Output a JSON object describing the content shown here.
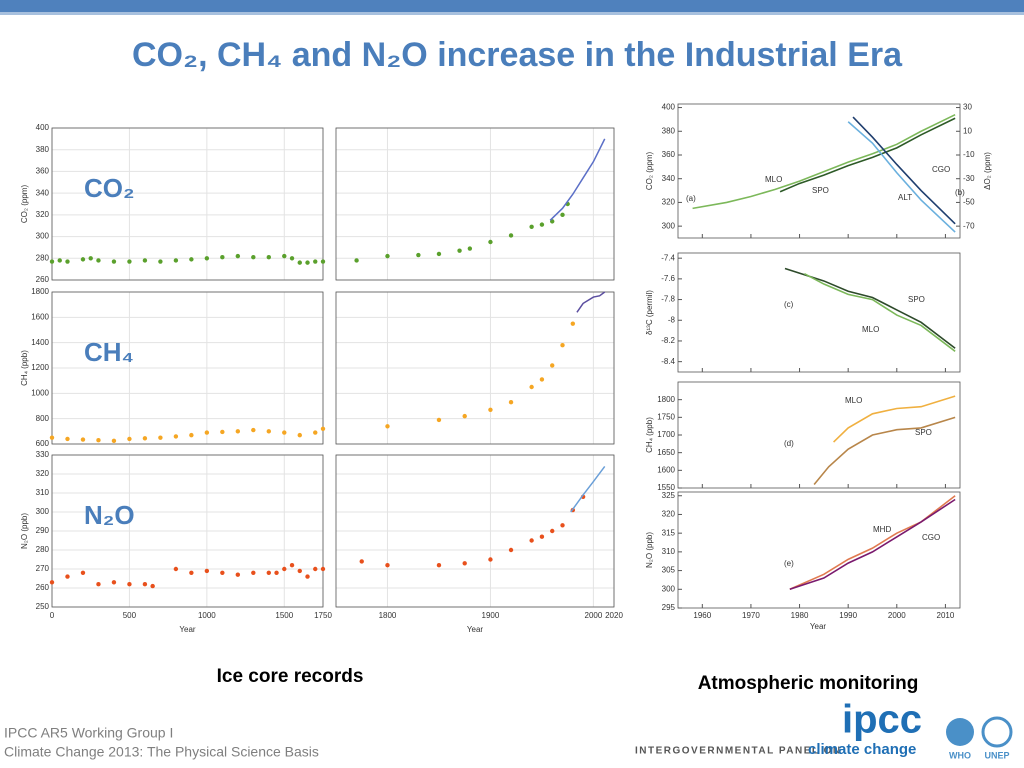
{
  "title": "CO₂, CH₄ and N₂O increase in the Industrial Era",
  "captions": [
    "Ice core records",
    "Atmospheric monitoring"
  ],
  "footer": [
    "IPCC AR5 Working Group I",
    "Climate Change 2013:  The Physical Science Basis"
  ],
  "logo": {
    "name": "ipcc",
    "tagline": "INTERGOVERNMENTAL PANEL ON",
    "tagline2": "climate change",
    "partners": [
      "WHO",
      "UNEP"
    ]
  },
  "chart_data": [
    {
      "type": "scatter",
      "label": "CO₂",
      "ylabel": "CO₂ (ppm)",
      "color": "#5aa02c",
      "ylim": [
        260,
        400
      ],
      "yticks": [
        260,
        280,
        300,
        320,
        340,
        360,
        380,
        400
      ],
      "xlim": [
        0,
        1750
      ],
      "xticks": [
        0,
        500,
        1000,
        1500,
        1750
      ],
      "x2lim": [
        1750,
        2020
      ],
      "x2ticks": [
        1800,
        1900,
        2000,
        2020
      ],
      "x": [
        0,
        50,
        100,
        200,
        250,
        300,
        400,
        500,
        600,
        700,
        800,
        900,
        1000,
        1100,
        1200,
        1300,
        1400,
        1500,
        1550,
        1600,
        1650,
        1700,
        1750,
        1770,
        1800,
        1830,
        1850,
        1870,
        1880,
        1900,
        1920,
        1940,
        1950,
        1960,
        1970,
        1975
      ],
      "values": [
        277,
        278,
        277,
        279,
        280,
        278,
        277,
        277,
        278,
        277,
        278,
        279,
        280,
        281,
        282,
        281,
        281,
        282,
        280,
        276,
        276,
        277,
        277,
        278,
        282,
        283,
        284,
        287,
        289,
        295,
        301,
        309,
        311,
        314,
        320,
        330
      ],
      "line": {
        "color": "#5b6fc7",
        "x": [
          1958,
          1970,
          1980,
          1990,
          2000,
          2011
        ],
        "values": [
          315,
          326,
          339,
          354,
          369,
          390
        ]
      }
    },
    {
      "type": "scatter",
      "label": "CH₄",
      "ylabel": "CH₄ (ppb)",
      "color": "#f5a623",
      "ylim": [
        600,
        1800
      ],
      "yticks": [
        600,
        800,
        1000,
        1200,
        1400,
        1600,
        1800
      ],
      "xlim": [
        0,
        1750
      ],
      "xticks": [
        0,
        500,
        1000,
        1500,
        1750
      ],
      "x2lim": [
        1750,
        2020
      ],
      "x2ticks": [
        1800,
        1900,
        2000,
        2020
      ],
      "x": [
        0,
        100,
        200,
        300,
        400,
        500,
        600,
        700,
        800,
        900,
        1000,
        1100,
        1200,
        1300,
        1400,
        1500,
        1600,
        1700,
        1750,
        1800,
        1850,
        1875,
        1900,
        1920,
        1940,
        1950,
        1960,
        1970,
        1980
      ],
      "values": [
        650,
        640,
        635,
        630,
        625,
        640,
        645,
        650,
        660,
        670,
        690,
        695,
        700,
        710,
        700,
        690,
        670,
        690,
        720,
        740,
        790,
        820,
        870,
        930,
        1050,
        1110,
        1220,
        1380,
        1550
      ],
      "line": {
        "color": "#5b4ea0",
        "x": [
          1984,
          1990,
          2000,
          2006,
          2011
        ],
        "values": [
          1640,
          1710,
          1760,
          1770,
          1800
        ]
      }
    },
    {
      "type": "scatter",
      "label": "N₂O",
      "ylabel": "N₂O (ppb)",
      "xlabel": "Year",
      "color": "#e8501c",
      "ylim": [
        250,
        330
      ],
      "yticks": [
        250,
        260,
        270,
        280,
        290,
        300,
        310,
        320,
        330
      ],
      "xlim": [
        0,
        1750
      ],
      "xticks": [
        0,
        500,
        1000,
        1500,
        1750
      ],
      "x2lim": [
        1750,
        2020
      ],
      "x2ticks": [
        1800,
        1900,
        2000,
        2020
      ],
      "x": [
        0,
        100,
        200,
        300,
        400,
        500,
        600,
        650,
        800,
        900,
        1000,
        1100,
        1200,
        1300,
        1400,
        1450,
        1500,
        1550,
        1600,
        1650,
        1700,
        1750,
        1775,
        1800,
        1850,
        1875,
        1900,
        1920,
        1940,
        1950,
        1960,
        1970,
        1980,
        1990
      ],
      "values": [
        263,
        266,
        268,
        262,
        263,
        262,
        262,
        261,
        270,
        268,
        269,
        268,
        267,
        268,
        268,
        268,
        270,
        272,
        269,
        266,
        270,
        270,
        274,
        272,
        272,
        273,
        275,
        280,
        285,
        287,
        290,
        293,
        301,
        308
      ],
      "line": {
        "color": "#6a9fd8",
        "x": [
          1978,
          1990,
          2000,
          2011
        ],
        "values": [
          300,
          309,
          316,
          324
        ]
      }
    },
    {
      "type": "line",
      "panel_labels": [
        "(a)",
        "(b)"
      ],
      "ylabel": "CO₂ (ppm)",
      "y2label": "ΔO₂ (ppm)",
      "xlim": [
        1955,
        2013
      ],
      "xticks": [
        1960,
        1970,
        1980,
        1990,
        2000,
        2010
      ],
      "ylim": [
        290,
        403
      ],
      "yticks": [
        300,
        320,
        340,
        360,
        380,
        400
      ],
      "y2lim": [
        -80,
        33
      ],
      "y2ticks": [
        30,
        10,
        -10,
        -30,
        -50,
        -70
      ],
      "series": [
        {
          "name": "MLO",
          "color": "#7cb85a",
          "x": [
            1958,
            1965,
            1970,
            1975,
            1980,
            1985,
            1990,
            1995,
            2000,
            2005,
            2012
          ],
          "values": [
            315,
            320,
            325,
            331,
            338,
            346,
            354,
            361,
            369,
            380,
            394
          ]
        },
        {
          "name": "SPO",
          "color": "#2d5a27",
          "x": [
            1976,
            1980,
            1985,
            1990,
            1995,
            2000,
            2005,
            2012
          ],
          "values": [
            329,
            336,
            343,
            351,
            358,
            366,
            377,
            391
          ]
        },
        {
          "name": "CGO",
          "color": "#1f3e6e",
          "axis": "y2",
          "x": [
            1991,
            1995,
            2000,
            2005,
            2012
          ],
          "values": [
            22,
            5,
            -18,
            -40,
            -68
          ]
        },
        {
          "name": "ALT",
          "color": "#6ab0de",
          "axis": "y2",
          "x": [
            1990,
            1995,
            2000,
            2005,
            2012
          ],
          "values": [
            18,
            0,
            -25,
            -48,
            -75
          ]
        }
      ]
    },
    {
      "type": "line",
      "panel_labels": [
        "(c)"
      ],
      "ylabel": "δ¹³C (permil)",
      "xlim": [
        1955,
        2013
      ],
      "xticks": [
        1960,
        1970,
        1980,
        1990,
        2000,
        2010
      ],
      "ylim": [
        -8.5,
        -7.35
      ],
      "yticks": [
        -7.4,
        -7.6,
        -7.8,
        -8,
        -8.2,
        -8.4
      ],
      "series": [
        {
          "name": "SPO",
          "color": "#2d4a2a",
          "x": [
            1977,
            1985,
            1990,
            1995,
            2000,
            2005,
            2012
          ],
          "values": [
            -7.5,
            -7.62,
            -7.72,
            -7.78,
            -7.9,
            -8.02,
            -8.27
          ]
        },
        {
          "name": "MLO",
          "color": "#7cb85a",
          "x": [
            1981,
            1985,
            1990,
            1995,
            2000,
            2005,
            2012
          ],
          "values": [
            -7.55,
            -7.65,
            -7.75,
            -7.8,
            -7.95,
            -8.05,
            -8.3
          ]
        }
      ]
    },
    {
      "type": "line",
      "panel_labels": [
        "(d)"
      ],
      "ylabel": "CH₄ (ppb)",
      "xlim": [
        1955,
        2013
      ],
      "xticks": [
        1960,
        1970,
        1980,
        1990,
        2000,
        2010
      ],
      "ylim": [
        1550,
        1850
      ],
      "yticks": [
        1550,
        1600,
        1650,
        1700,
        1750,
        1800
      ],
      "series": [
        {
          "name": "MLO",
          "color": "#f0b040",
          "x": [
            1987,
            1990,
            1995,
            2000,
            2005,
            2012
          ],
          "values": [
            1680,
            1720,
            1760,
            1775,
            1780,
            1810
          ]
        },
        {
          "name": "SPO",
          "color": "#b8864a",
          "x": [
            1983,
            1986,
            1990,
            1995,
            2000,
            2005,
            2012
          ],
          "values": [
            1560,
            1610,
            1660,
            1700,
            1715,
            1720,
            1750
          ]
        }
      ]
    },
    {
      "type": "line",
      "panel_labels": [
        "(e)"
      ],
      "ylabel": "N₂O (ppb)",
      "xlabel": "Year",
      "xlim": [
        1955,
        2013
      ],
      "xticks": [
        1960,
        1970,
        1980,
        1990,
        2000,
        2010
      ],
      "ylim": [
        295,
        326
      ],
      "yticks": [
        295,
        300,
        305,
        310,
        315,
        320,
        325
      ],
      "series": [
        {
          "name": "MHD",
          "color": "#e07a50",
          "x": [
            1978,
            1985,
            1990,
            1995,
            2000,
            2005,
            2012
          ],
          "values": [
            300,
            304,
            308,
            311,
            315,
            318,
            325
          ]
        },
        {
          "name": "CGO",
          "color": "#7a1a6e",
          "x": [
            1978,
            1985,
            1990,
            1995,
            2000,
            2005,
            2012
          ],
          "values": [
            300,
            303,
            307,
            310,
            314,
            318,
            324
          ]
        }
      ]
    }
  ]
}
